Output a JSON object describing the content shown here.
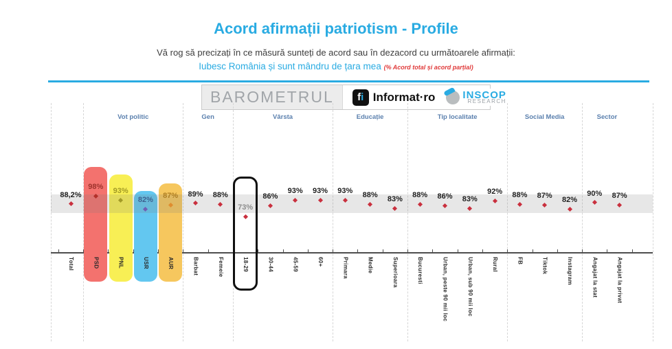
{
  "header": {
    "title": "Acord afirmații patriotism - Profile",
    "subtitle": "Vă rog să precizați în ce măsură sunteți de acord sau în dezacord cu următoarele afirmații:",
    "statement": "Iubesc România și sunt mândru de țara mea",
    "statement_note": "(% Acord total și acord parțial)",
    "accent_color": "#29abe2",
    "note_color": "#e03a3a"
  },
  "logos": {
    "barometrul": "BAROMETRUL",
    "informat": {
      "icon": "informat-i-icon",
      "name": "Informat",
      "separator": "·",
      "tld": "ro"
    },
    "inscop": {
      "icon": "inscop-globe-icon",
      "line1": "INSCOP",
      "line2": "RESEARCH"
    }
  },
  "chart_data": {
    "type": "scatter",
    "title": "Acord afirmații patriotism - Profile",
    "subtitle": "Iubesc România și sunt mândru de țara mea (% Acord total și acord parțial)",
    "unit": "%",
    "marker": "red-diamond",
    "ylim_implied": [
      60,
      100
    ],
    "band_note": "light gray horizontal reference band behind markers",
    "highlighted_category": "18-29",
    "default_dot_color": "#c9303e",
    "default_text_color": "#1f1f1f",
    "groups": [
      {
        "label": "",
        "items": [
          {
            "label": "Total",
            "value": 88.2,
            "display": "88,2%"
          }
        ]
      },
      {
        "label": "Vot politic",
        "items": [
          {
            "label": "PSD",
            "value": 98,
            "display": "98%",
            "bar_color": "#f3726e",
            "text_color": "#9e322c",
            "dot_color": "#b4302a"
          },
          {
            "label": "PNL",
            "value": 93,
            "display": "93%",
            "bar_color": "#f8ef55",
            "text_color": "#a29a26",
            "dot_color": "#a29a26"
          },
          {
            "label": "USR",
            "value": 82,
            "display": "82%",
            "bar_color": "#63c7f0",
            "text_color": "#3d6290",
            "dot_color": "#6f5fb5"
          },
          {
            "label": "AUR",
            "value": 87,
            "display": "87%",
            "bar_color": "#f6c75e",
            "text_color": "#ad7d22",
            "dot_color": "#df8d2f"
          }
        ]
      },
      {
        "label": "Gen",
        "items": [
          {
            "label": "Barbat",
            "value": 89,
            "display": "89%"
          },
          {
            "label": "Femeie",
            "value": 88,
            "display": "88%"
          }
        ]
      },
      {
        "label": "Vârsta",
        "items": [
          {
            "label": "18-29",
            "value": 73,
            "display": "73%",
            "highlight": true,
            "text_color": "#8d8d8d"
          },
          {
            "label": "30-44",
            "value": 86,
            "display": "86%"
          },
          {
            "label": "45-59",
            "value": 93,
            "display": "93%"
          },
          {
            "label": "60+",
            "value": 93,
            "display": "93%"
          }
        ]
      },
      {
        "label": "Educație",
        "items": [
          {
            "label": "Primara",
            "value": 93,
            "display": "93%"
          },
          {
            "label": "Medie",
            "value": 88,
            "display": "88%"
          },
          {
            "label": "Superioara",
            "value": 83,
            "display": "83%"
          }
        ]
      },
      {
        "label": "Tip localitate",
        "items": [
          {
            "label": "Bucuresti",
            "value": 88,
            "display": "88%"
          },
          {
            "label": "Urban, peste 90 mii loc",
            "value": 86,
            "display": "86%"
          },
          {
            "label": "Urban, sub 90 mii loc",
            "value": 83,
            "display": "83%"
          },
          {
            "label": "Rural",
            "value": 92,
            "display": "92%"
          }
        ]
      },
      {
        "label": "Social Media",
        "items": [
          {
            "label": "FB",
            "value": 88,
            "display": "88%"
          },
          {
            "label": "Tiktok",
            "value": 87,
            "display": "87%"
          },
          {
            "label": "Instagram",
            "value": 82,
            "display": "82%"
          }
        ]
      },
      {
        "label": "Sector",
        "items": [
          {
            "label": "Angajat la stat",
            "value": 90,
            "display": "90%"
          },
          {
            "label": "Angajat la privat",
            "value": 87,
            "display": "87%"
          }
        ]
      }
    ]
  }
}
